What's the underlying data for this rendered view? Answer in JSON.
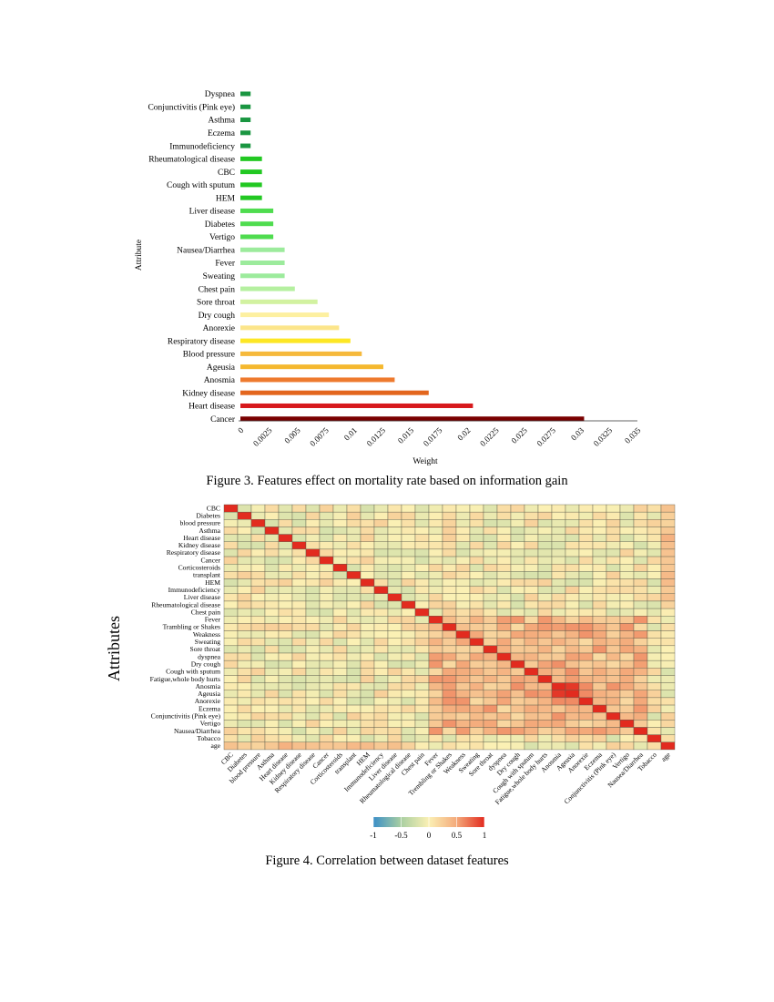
{
  "figure3": {
    "caption": "Figure 3. Features effect on mortality rate based on information gain",
    "chart_data": {
      "type": "bar",
      "orientation": "horizontal",
      "xlabel": "Weight",
      "ylabel": "Attribute",
      "xlim": [
        0,
        0.035
      ],
      "xticks": [
        "0",
        "0.0025",
        "0.005",
        "0.0075",
        "0.01",
        "0.0125",
        "0.015",
        "0.0175",
        "0.02",
        "0.0225",
        "0.025",
        "0.0275",
        "0.03",
        "0.0325",
        "0.035"
      ],
      "categories": [
        "Dyspnea",
        "Conjunctivitis (Pink eye)",
        "Asthma",
        "Eczema",
        "Immunodeficiency",
        "Rheumatological disease",
        "CBC",
        "Cough with sputum",
        "HEM",
        "Liver disease",
        "Diabetes",
        "Vertigo",
        "Nausea/Diarrhea",
        "Fever",
        "Sweating",
        "Chest pain",
        "Sore throat",
        "Dry cough",
        "Anorexie",
        "Respiratory disease",
        "Blood pressure",
        "Ageusia",
        "Anosmia",
        "Kidney disease",
        "Heart disease",
        "Cancer"
      ],
      "values": [
        0.0009,
        0.0009,
        0.0009,
        0.0009,
        0.0009,
        0.0019,
        0.0019,
        0.0019,
        0.0019,
        0.0029,
        0.0029,
        0.0029,
        0.0039,
        0.0039,
        0.0039,
        0.0048,
        0.0068,
        0.0078,
        0.0087,
        0.0097,
        0.0107,
        0.0126,
        0.0136,
        0.0166,
        0.0205,
        0.0303
      ],
      "colors": [
        "#1a9641",
        "#1a9641",
        "#1a9641",
        "#1a9641",
        "#1a9641",
        "#22c822",
        "#22c822",
        "#22c822",
        "#22c822",
        "#4fdc4f",
        "#4fdc4f",
        "#4fdc4f",
        "#9ceb9c",
        "#9ceb9c",
        "#9ceb9c",
        "#b5f0a0",
        "#d2f2a0",
        "#fdf0a0",
        "#fce58a",
        "#fde725",
        "#f6b93b",
        "#f5b82e",
        "#ee7a2e",
        "#e3661e",
        "#d7191c",
        "#7a0000"
      ]
    }
  },
  "figure4": {
    "caption": "Figure 4. Correlation between dataset features",
    "chart_data": {
      "type": "heatmap",
      "ylabel": "Attributes",
      "row_labels": [
        "CBC",
        "Diabetes",
        "blood pressure",
        "Asthma",
        "Heart disease",
        "Kidney disease",
        "Respiratory disease",
        "Cancer",
        "Corticosteroids",
        "transplant",
        "HEM",
        "Immunodeficiency",
        "Liver disease",
        "Rheumatological disease",
        "Chest pain",
        "Fever",
        "Trambling or Shakes",
        "Weakness",
        "Sweating",
        "Sore throat",
        "dyspnea",
        "Dry cough",
        "Cough with sputum",
        "Fatigue,whole body hurts",
        "Anosmia",
        "Ageusia",
        "Anorexie",
        "Eczema",
        "Conjunctivitis (Pink eye)",
        "Vertigo",
        "Nausea/Diarrhea",
        "Tobacco",
        "age"
      ],
      "col_labels": [
        "CBC",
        "Diabetes",
        "blood pressure",
        "Asthma",
        "Heart disease",
        "Kidney disease",
        "Respiratory disease",
        "Cancer",
        "Corticosteroids",
        "transplant",
        "HEM",
        "Immunodeficiency",
        "Liver disease",
        "Rheumatological disease",
        "Chest pain",
        "Fever",
        "Trembling or Shakes",
        "Weakness",
        "Sweating",
        "Sore throat",
        "dyspnea",
        "Dry cough",
        "Cough with sputum",
        "Fatigue,whole body hurts",
        "Anosmia",
        "Ageusia",
        "Anorexie",
        "Eczema",
        "Conjunctivitis (Pink eye)",
        "Vertigo",
        "Nausea/Diarrhea",
        "Tobacco",
        "age"
      ],
      "colorbar": {
        "ticks": [
          "-1",
          "-0.5",
          "0",
          "0.5",
          "1"
        ],
        "range": [
          -1,
          1
        ]
      },
      "notes": "diagonal = 1; symptom block (Fever..Nausea/Diarrhea) moderately positive; Anosmia-Ageusia strongly positive"
    }
  }
}
